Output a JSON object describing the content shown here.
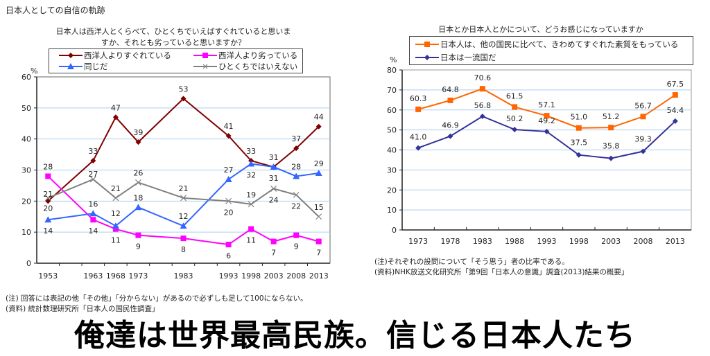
{
  "page_title": "日本人としての自信の軌跡",
  "headline": "俺達は世界最高民族。信じる日本人たち",
  "left": {
    "question_line1": "日本人は西洋人とくらべて、ひとくちでいえばすぐれていると思いま",
    "question_line2": "すか、それとも劣っていると思いますか？",
    "notes": [
      "(注) 回答には表記の他「その他」「分からない」があるので必ずしも足して100にならない。",
      "(資料) 統計数理研究所「日本人の国民性調査」"
    ]
  },
  "right": {
    "question": "日本とか日本人とかについて、どうお感じになっていますか",
    "notes": [
      "(注)それぞれの設問について「そう思う」者の比率である。",
      "(資料)NHK放送文化研究所「第9回「日本人の意識」調査(2013)結果の概要」"
    ]
  },
  "chart_data": [
    {
      "type": "line",
      "title": "日本人は西洋人とくらべて、ひとくちでいえばすぐれていると思いますか、それとも劣っていると思いますか？",
      "ylabel": "%",
      "xlabel": "",
      "ylim": [
        0,
        60
      ],
      "yticks": [
        0,
        10,
        20,
        30,
        40,
        50,
        60
      ],
      "x_slots": [
        1953,
        1958,
        1963,
        1968,
        1973,
        1978,
        1983,
        1988,
        1993,
        1998,
        2003,
        2008,
        2013
      ],
      "categories": [
        "1953",
        "1963",
        "1968",
        "1973",
        "1983",
        "1993",
        "1998",
        "2003",
        "2008",
        "2013"
      ],
      "x": [
        1953,
        1963,
        1968,
        1973,
        1983,
        1993,
        1998,
        2003,
        2008,
        2013
      ],
      "grid": true,
      "legend_position": "top",
      "series": [
        {
          "name": "西洋人よりすぐれている",
          "color": "#800000",
          "marker": "diamond",
          "values": [
            20,
            33,
            47,
            39,
            53,
            41,
            33,
            31,
            37,
            44
          ],
          "label_pos": "above"
        },
        {
          "name": "西洋人より劣っている",
          "color": "#ff00ff",
          "marker": "square",
          "values": [
            28,
            14,
            11,
            9,
            8,
            6,
            11,
            7,
            9,
            7
          ],
          "label_pos": "below"
        },
        {
          "name": "同じだ",
          "color": "#3366ff",
          "marker": "triangle",
          "values": [
            14,
            16,
            12,
            18,
            12,
            27,
            32,
            31,
            28,
            29
          ],
          "label_pos": "mixed"
        },
        {
          "name": "ひとくちではいえない",
          "color": "#808080",
          "marker": "x",
          "values": [
            21,
            27,
            21,
            26,
            21,
            20,
            19,
            24,
            22,
            15
          ],
          "label_pos": "mixed"
        }
      ]
    },
    {
      "type": "line",
      "title": "日本とか日本人とかについて、どうお感じになっていますか",
      "ylabel": "%",
      "xlabel": "",
      "ylim": [
        0,
        80
      ],
      "yticks": [
        0,
        10,
        20,
        30,
        40,
        50,
        60,
        70,
        80
      ],
      "categories": [
        "1973",
        "1978",
        "1983",
        "1988",
        "1993",
        "1998",
        "2003",
        "2008",
        "2013"
      ],
      "grid": true,
      "legend_position": "top",
      "series": [
        {
          "name": "日本人は、他の国民に比べて、きわめてすぐれた素質をもっている",
          "color": "#ff6600",
          "marker": "square",
          "values": [
            60.3,
            64.8,
            70.6,
            61.5,
            57.1,
            51.0,
            51.2,
            56.7,
            67.5
          ]
        },
        {
          "name": "日本は一流国だ",
          "color": "#333399",
          "marker": "diamond",
          "values": [
            41.0,
            46.9,
            56.8,
            50.2,
            49.2,
            37.5,
            35.8,
            39.3,
            54.4
          ]
        }
      ]
    }
  ]
}
